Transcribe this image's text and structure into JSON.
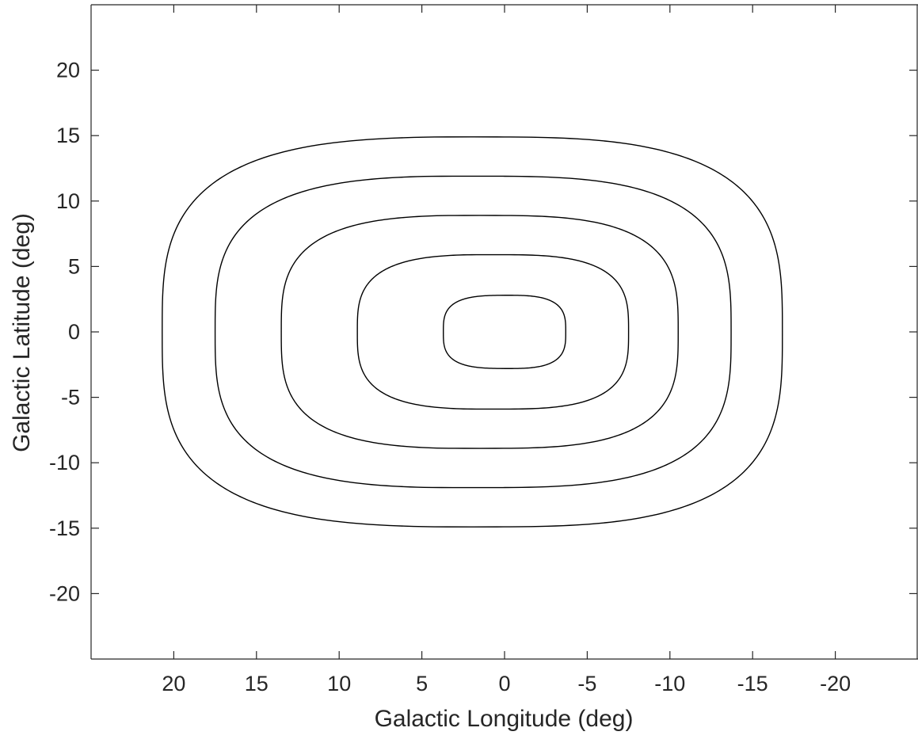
{
  "chart_data": {
    "type": "contour",
    "title": "",
    "xlabel": "Galactic Longitude (deg)",
    "ylabel": "Galactic Latitude (deg)",
    "xlim": [
      25,
      -25
    ],
    "ylim": [
      -25,
      25
    ],
    "x_reversed": true,
    "grid": false,
    "x_ticks": [
      20,
      15,
      10,
      5,
      0,
      -5,
      -10,
      -15,
      -20
    ],
    "x_tick_labels": [
      "20",
      "15",
      "10",
      "5",
      "0",
      "-5",
      "-10",
      "-15",
      "-20"
    ],
    "y_ticks": [
      20,
      15,
      10,
      5,
      0,
      -5,
      -10,
      -15,
      -20
    ],
    "y_tick_labels": [
      "20",
      "15",
      "10",
      "5",
      "0",
      "-5",
      "-10",
      "-15",
      "-20"
    ],
    "line_color": "#000000",
    "contours": [
      {
        "center_l": 0.0,
        "left_l": 3.7,
        "right_l": -3.7,
        "top_b": 2.8,
        "bottom_b": -2.8,
        "peak_l": 0.0
      },
      {
        "center_l": 0.7,
        "left_l": 8.9,
        "right_l": -7.5,
        "top_b": 5.9,
        "bottom_b": -5.9,
        "peak_l": 2.5
      },
      {
        "center_l": 1.0,
        "left_l": 13.5,
        "right_l": -10.5,
        "top_b": 8.9,
        "bottom_b": -8.9,
        "peak_l": 4.0
      },
      {
        "center_l": 1.8,
        "left_l": 17.5,
        "right_l": -13.7,
        "top_b": 11.9,
        "bottom_b": -11.9,
        "peak_l": 5.0
      },
      {
        "center_l": 2.0,
        "left_l": 20.7,
        "right_l": -16.8,
        "top_b": 14.9,
        "bottom_b": -14.9,
        "peak_l": 4.5
      }
    ]
  }
}
